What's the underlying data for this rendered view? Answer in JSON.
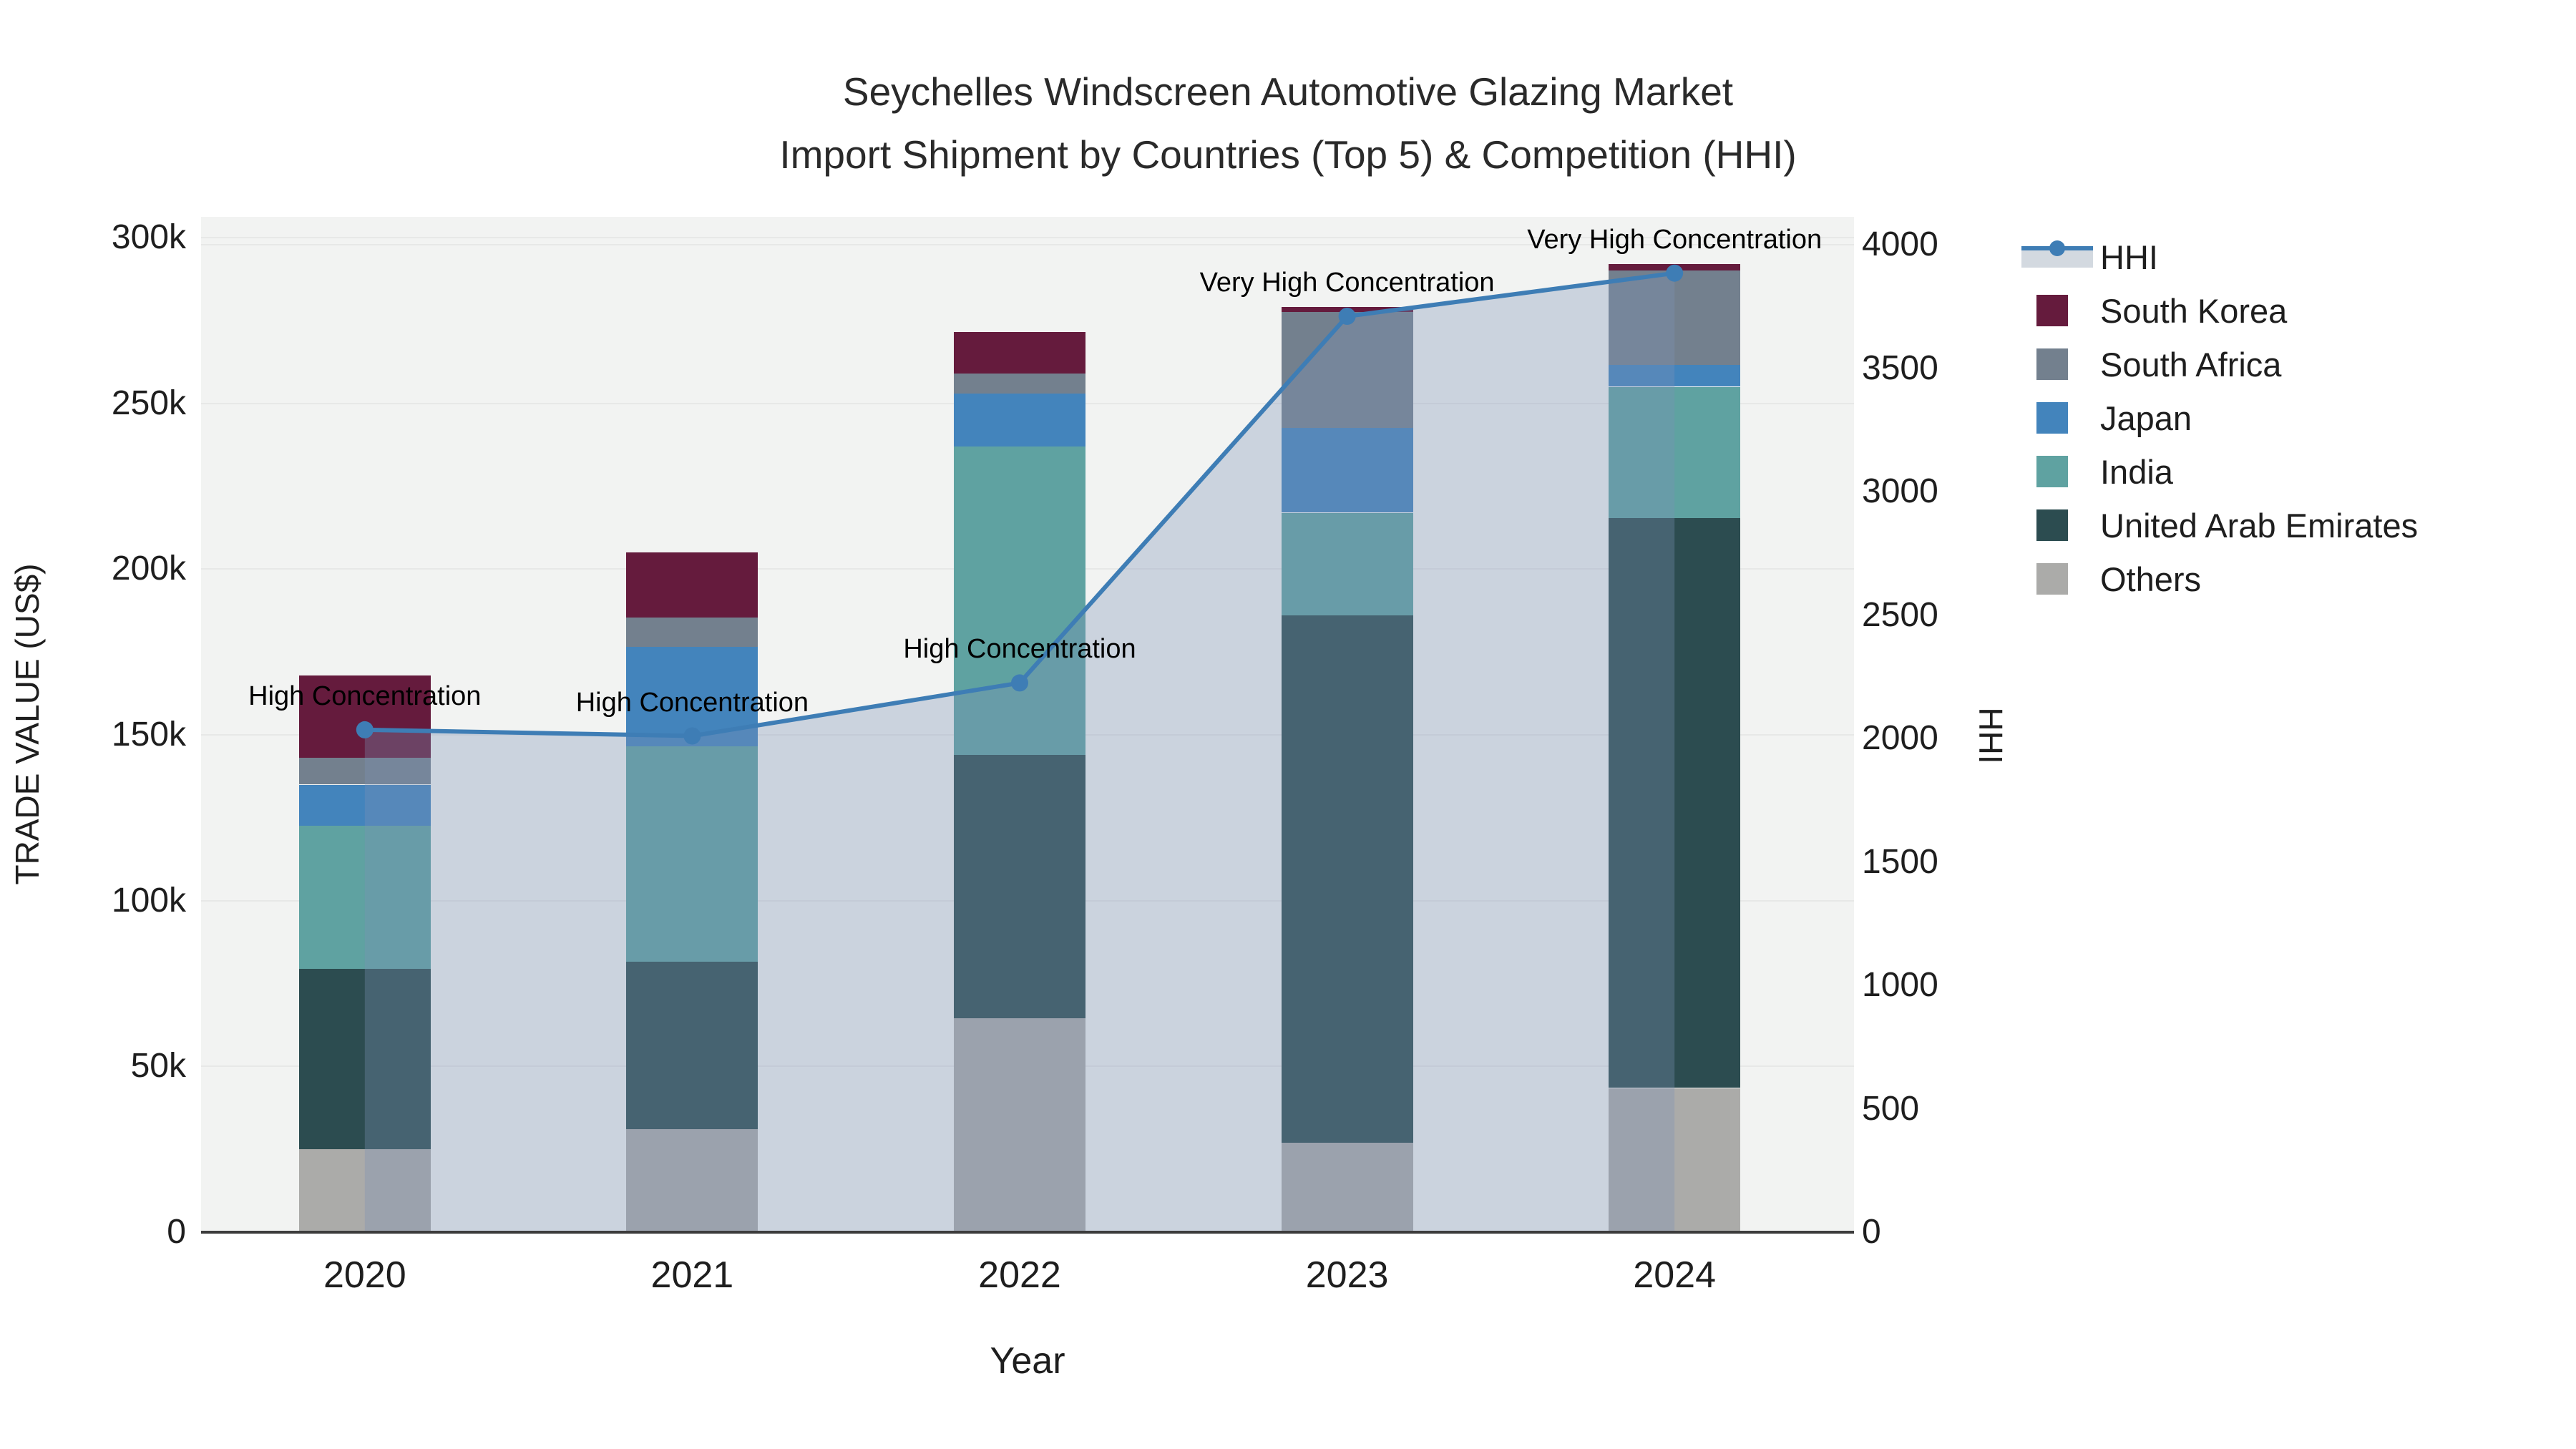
{
  "title": {
    "line1": "Seychelles Windscreen Automotive Glazing Market",
    "line2": "Import Shipment by Countries (Top 5) & Competition (HHI)"
  },
  "axes": {
    "x": {
      "title": "Year",
      "categories": [
        "2020",
        "2021",
        "2022",
        "2023",
        "2024"
      ]
    },
    "y_left": {
      "title": "TRADE VALUE (US$)",
      "tick_labels": [
        "0",
        "50k",
        "100k",
        "150k",
        "200k",
        "250k",
        "300k"
      ],
      "range": [
        0,
        300000
      ]
    },
    "y_right": {
      "title": "HHI",
      "tick_labels": [
        "0",
        "500",
        "1000",
        "1500",
        "2000",
        "2500",
        "3000",
        "3500",
        "4000"
      ],
      "range": [
        0,
        4000
      ]
    }
  },
  "legend": {
    "items": [
      "HHI",
      "South Korea",
      "South Africa",
      "Japan",
      "India",
      "United Arab Emirates",
      "Others"
    ]
  },
  "chart_data": {
    "type": "bar+line",
    "categories": [
      "2020",
      "2021",
      "2022",
      "2023",
      "2024"
    ],
    "bar_value_unit": "US$ trade value",
    "series": [
      {
        "name": "Others",
        "color": "#ABABA9",
        "values": [
          25000,
          31000,
          64500,
          27000,
          43500
        ]
      },
      {
        "name": "United Arab Emirates",
        "color": "#2C4C50",
        "values": [
          54500,
          50500,
          79500,
          159000,
          172000
        ]
      },
      {
        "name": "India",
        "color": "#5FA2A1",
        "values": [
          43000,
          65000,
          93000,
          31000,
          39500
        ]
      },
      {
        "name": "Japan",
        "color": "#4384BC",
        "values": [
          12500,
          30000,
          16000,
          25500,
          6500
        ]
      },
      {
        "name": "South Africa",
        "color": "#73808E",
        "values": [
          8000,
          9000,
          6000,
          35000,
          28500
        ]
      },
      {
        "name": "South Korea",
        "color": "#651B3D",
        "values": [
          25000,
          19500,
          12500,
          1500,
          2000
        ]
      }
    ],
    "line_series": {
      "name": "HHI",
      "axis": "right",
      "color": "#3E7DB5",
      "area_color": "rgba(124,146,181,0.33)",
      "values": [
        2035,
        2010,
        2225,
        3710,
        3885
      ]
    },
    "annotations": [
      {
        "x": "2020",
        "text": "High Concentration"
      },
      {
        "x": "2021",
        "text": "High Concentration"
      },
      {
        "x": "2022",
        "text": "High Concentration"
      },
      {
        "x": "2023",
        "text": "Very High Concentration"
      },
      {
        "x": "2024",
        "text": "Very High Concentration"
      }
    ],
    "ylim_left": [
      0,
      300000
    ],
    "ylim_right": [
      0,
      4000
    ],
    "grid": "horizontal",
    "legend_position": "right"
  },
  "colors": {
    "figure_bg": "#FFFFFF",
    "plot_bg": "#F2F3F2",
    "gridline": "#E7E8E7",
    "axis_line": "#3C3C3C",
    "text": "#1E1E1E"
  }
}
